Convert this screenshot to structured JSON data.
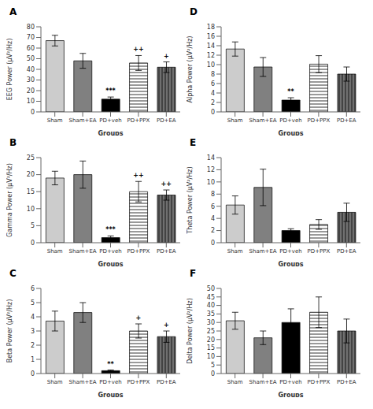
{
  "chart_data": [
    {
      "type": "bar",
      "title": "A",
      "xlabel": "Groups",
      "ylabel": "EEG Power (μV²/Hz)",
      "categories": [
        "Sham",
        "Sham+EA",
        "PD+veh",
        "PD+PPX",
        "PD+EA"
      ],
      "values": [
        67,
        48,
        12,
        46,
        42
      ],
      "errors": [
        5,
        7,
        2,
        7,
        5
      ],
      "colors": [
        "#cccccc",
        "#808080",
        "#000000",
        "#ffffff",
        "#707070"
      ],
      "ylim": [
        0,
        80
      ],
      "yticks": [
        0,
        10,
        20,
        30,
        40,
        50,
        60,
        70,
        80
      ],
      "grid": false,
      "annotations": [
        {
          "category": "PD+veh",
          "text": "***"
        },
        {
          "category": "PD+PPX",
          "text": "++"
        },
        {
          "category": "PD+EA",
          "text": "+"
        }
      ]
    },
    {
      "type": "bar",
      "title": "D",
      "xlabel": "Groups",
      "ylabel": "Alpha Power (μV²/Hz)",
      "categories": [
        "Sham",
        "Sham+EA",
        "PD+veh",
        "PD+PPX",
        "PD+EA"
      ],
      "values": [
        13.3,
        9.5,
        2.5,
        10.1,
        8.0
      ],
      "errors": [
        1.5,
        2.0,
        0.5,
        1.8,
        1.5
      ],
      "colors": [
        "#cccccc",
        "#808080",
        "#000000",
        "#ffffff",
        "#707070"
      ],
      "ylim": [
        0,
        18
      ],
      "yticks": [
        0,
        2,
        4,
        6,
        8,
        10,
        12,
        14,
        16,
        18
      ],
      "grid": false,
      "annotations": [
        {
          "category": "PD+veh",
          "text": "**"
        }
      ]
    },
    {
      "type": "bar",
      "title": "B",
      "xlabel": "Groups",
      "ylabel": "Gamma Power (μV²/Hz)",
      "categories": [
        "Sham",
        "Sham+EA",
        "PD+veh",
        "PD+PPX",
        "PD+EA"
      ],
      "values": [
        19,
        20,
        1.5,
        15,
        14
      ],
      "errors": [
        2,
        4,
        0.5,
        3,
        1.5
      ],
      "colors": [
        "#cccccc",
        "#808080",
        "#000000",
        "#ffffff",
        "#707070"
      ],
      "ylim": [
        0,
        25
      ],
      "yticks": [
        0,
        5,
        10,
        15,
        20,
        25
      ],
      "grid": false,
      "annotations": [
        {
          "category": "PD+veh",
          "text": "***"
        },
        {
          "category": "PD+PPX",
          "text": "++"
        },
        {
          "category": "PD+EA",
          "text": "++"
        }
      ]
    },
    {
      "type": "bar",
      "title": "E",
      "xlabel": "Groups",
      "ylabel": "Theta Power (μV²/Hz)",
      "categories": [
        "Sham",
        "Sham+EA",
        "PD+veh",
        "PD+PPX",
        "PD+EA"
      ],
      "values": [
        6.2,
        9.1,
        2.0,
        3.0,
        5.0
      ],
      "errors": [
        1.5,
        3.0,
        0.3,
        0.8,
        1.5
      ],
      "colors": [
        "#cccccc",
        "#808080",
        "#000000",
        "#ffffff",
        "#707070"
      ],
      "ylim": [
        0,
        14
      ],
      "yticks": [
        0,
        2,
        4,
        6,
        8,
        10,
        12,
        14
      ],
      "grid": false,
      "annotations": []
    },
    {
      "type": "bar",
      "title": "C",
      "xlabel": "Groups",
      "ylabel": "Beta  Power (μV²/Hz)",
      "categories": [
        "Sham",
        "Sham+EA",
        "PD+veh",
        "PD+PPX",
        "PD+EA"
      ],
      "values": [
        3.7,
        4.3,
        0.2,
        3.0,
        2.6
      ],
      "errors": [
        0.7,
        0.7,
        0.05,
        0.5,
        0.4
      ],
      "colors": [
        "#cccccc",
        "#808080",
        "#000000",
        "#ffffff",
        "#707070"
      ],
      "ylim": [
        0,
        6
      ],
      "yticks": [
        0,
        1,
        2,
        3,
        4,
        5,
        6
      ],
      "grid": false,
      "annotations": [
        {
          "category": "PD+veh",
          "text": "**"
        },
        {
          "category": "PD+PPX",
          "text": "+"
        },
        {
          "category": "PD+EA",
          "text": "+"
        }
      ]
    },
    {
      "type": "bar",
      "title": "F",
      "xlabel": "Groups",
      "ylabel": "Delta Power (μV²/Hz)",
      "categories": [
        "Sham",
        "Sham+EA",
        "PD+veh",
        "PD+PPX",
        "PD+EA"
      ],
      "values": [
        31,
        21,
        30,
        36,
        25
      ],
      "errors": [
        5,
        4,
        8,
        9,
        7
      ],
      "colors": [
        "#cccccc",
        "#808080",
        "#000000",
        "#ffffff",
        "#707070"
      ],
      "ylim": [
        0,
        50
      ],
      "yticks": [
        0,
        5,
        10,
        15,
        20,
        25,
        30,
        35,
        40,
        45,
        50
      ],
      "grid": false,
      "annotations": []
    }
  ]
}
